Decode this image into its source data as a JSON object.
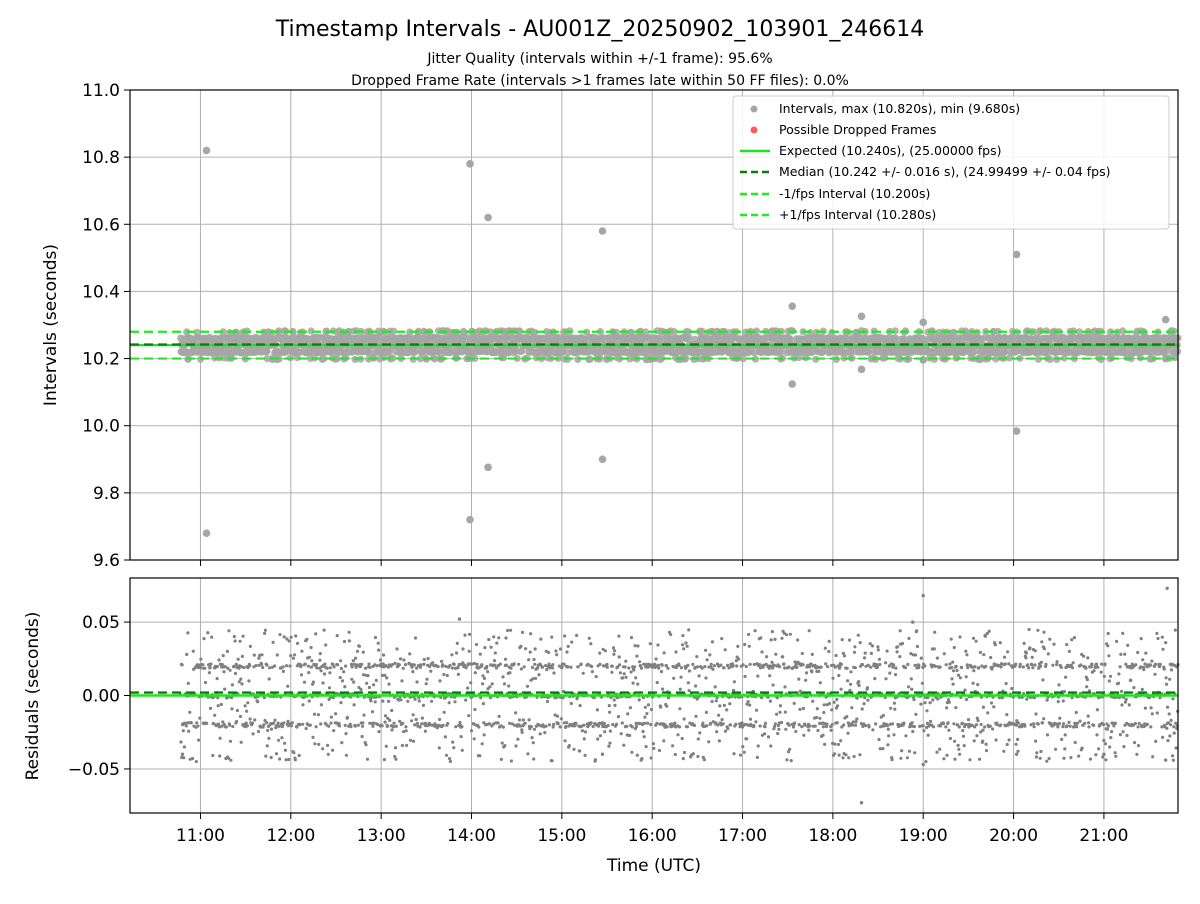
{
  "chart_data": {
    "type": "scatter",
    "title": "Timestamp Intervals - AU001Z_20250902_103901_246614",
    "subtitle_1": "Jitter Quality (intervals within +/-1 frame): 95.6%",
    "subtitle_2": "Dropped Frame Rate (intervals >1 frames late within 50 FF files): 0.0%",
    "xlabel": "Time (UTC)",
    "x_ticks": [
      "11:00",
      "12:00",
      "13:00",
      "14:00",
      "15:00",
      "16:00",
      "17:00",
      "18:00",
      "19:00",
      "20:00",
      "21:00"
    ],
    "x_range_hours": [
      10.22,
      21.82
    ],
    "data_time_range_hours": [
      10.78,
      21.82
    ],
    "grid": true,
    "legend_position": "top-right",
    "colors": {
      "intervals": "#a6a6a6",
      "dropped": "#f06262",
      "expected": "#1de51d",
      "median": "#0f7a0f",
      "fps_interval": "#26e626",
      "residuals": "#808080"
    },
    "panels": [
      {
        "name": "intervals",
        "ylabel": "Intervals (seconds)",
        "ylim": [
          9.6,
          11.0
        ],
        "y_ticks": [
          "9.6",
          "9.8",
          "10.0",
          "10.2",
          "10.4",
          "10.6",
          "10.8",
          "11.0"
        ],
        "y_tick_values": [
          9.6,
          9.8,
          10.0,
          10.2,
          10.4,
          10.6,
          10.8,
          11.0
        ],
        "reference_lines": [
          {
            "label": "Expected (10.240s), (25.00000 fps)",
            "value": 10.24,
            "style": "solid",
            "color": "#1de51d"
          },
          {
            "label": "Median (10.242 +/- 0.016 s), (24.99499 +/- 0.04 fps)",
            "value": 10.242,
            "style": "dashed",
            "color": "#0f7a0f"
          },
          {
            "label": "-1/fps Interval (10.200s)",
            "value": 10.2,
            "style": "dashed",
            "color": "#26e626"
          },
          {
            "label": "+1/fps Interval (10.280s)",
            "value": 10.28,
            "style": "dashed",
            "color": "#26e626"
          }
        ],
        "series": [
          {
            "name": "Intervals, max (10.820s), min (9.680s)",
            "marker": "circle",
            "color": "#a6a6a6"
          },
          {
            "name": "Possible Dropped Frames",
            "marker": "circle",
            "color": "#f06262",
            "count": 0
          }
        ],
        "outliers": [
          {
            "x": "11:04",
            "y": 10.82
          },
          {
            "x": "11:04",
            "y": 9.68
          },
          {
            "x": "13:59",
            "y": 10.78
          },
          {
            "x": "13:59",
            "y": 9.72
          },
          {
            "x": "14:11",
            "y": 10.62
          },
          {
            "x": "14:11",
            "y": 9.876
          },
          {
            "x": "15:27",
            "y": 10.58
          },
          {
            "x": "15:27",
            "y": 9.9
          },
          {
            "x": "17:33",
            "y": 10.356
          },
          {
            "x": "17:33",
            "y": 10.124
          },
          {
            "x": "18:19",
            "y": 10.326
          },
          {
            "x": "18:19",
            "y": 10.168
          },
          {
            "x": "19:00",
            "y": 10.308
          },
          {
            "x": "19:00",
            "y": 10.196
          },
          {
            "x": "20:02",
            "y": 10.51
          },
          {
            "x": "20:02",
            "y": 9.984
          },
          {
            "x": "21:41",
            "y": 10.316
          },
          {
            "x": "21:41",
            "y": 10.2
          }
        ],
        "main_band": {
          "levels": [
            10.24,
            10.26,
            10.22
          ],
          "spread": 0.02,
          "extremes": [
            10.2,
            10.28
          ]
        }
      },
      {
        "name": "residuals",
        "ylabel": "Residuals (seconds)",
        "ylim": [
          -0.08,
          0.08
        ],
        "y_ticks": [
          "−0.05",
          "0.00",
          "0.05"
        ],
        "y_tick_values": [
          -0.05,
          0.0,
          0.05
        ],
        "reference_lines": [
          {
            "value": 0.0,
            "style": "solid",
            "color": "#1de51d"
          },
          {
            "value": 0.002,
            "style": "dashed",
            "color": "#0f7a0f"
          }
        ],
        "levels": [
          0.02,
          0.0,
          -0.02
        ],
        "spread": 0.045,
        "outliers": [
          {
            "x": "13:52",
            "y": 0.052
          },
          {
            "x": "18:53",
            "y": 0.05
          },
          {
            "x": "19:00",
            "y": 0.068
          },
          {
            "x": "21:42",
            "y": 0.073
          },
          {
            "x": "11:18",
            "y": -0.042
          },
          {
            "x": "18:19",
            "y": -0.073
          },
          {
            "x": "19:00",
            "y": -0.047
          },
          {
            "x": "21:41",
            "y": -0.044
          },
          {
            "x": "10:48",
            "y": -0.04
          },
          {
            "x": "15:27",
            "y": -0.04
          },
          {
            "x": "20:02",
            "y": -0.04
          },
          {
            "x": "21:00",
            "y": -0.04
          }
        ]
      }
    ]
  }
}
